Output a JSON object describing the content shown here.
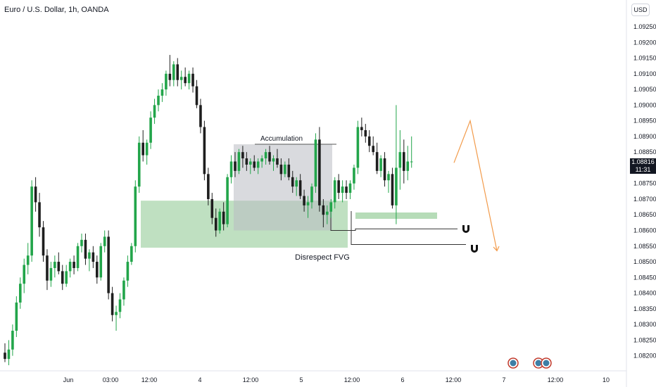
{
  "title": "Euro / U.S. Dollar, 1h, OANDA",
  "currency_button": "USD",
  "last_price": "1.08816",
  "countdown": "11:31",
  "annotations": {
    "accumulation": "Accumulation",
    "disrespect_fvg": "Disrespect FVG"
  },
  "colors": {
    "up": "#22a54a",
    "down": "#1e1e1e",
    "fvg_zone": "#a9d6ac",
    "accumulation_zone": "#b9bcc2",
    "projection": "#f29b4b",
    "price_badge": "#131722"
  },
  "icons": [
    "magnet-icon",
    "magnet-icon",
    "event-flag-icon",
    "event-flag-icon",
    "event-flag-icon"
  ],
  "chart_data": {
    "type": "candlestick",
    "title": "Euro / U.S. Dollar, 1h, OANDA",
    "x_ticks": [
      "Jun",
      "03:00",
      "12:00",
      "4",
      "12:00",
      "5",
      "12:00",
      "6",
      "12:00",
      "7",
      "12:00",
      "10"
    ],
    "y_ticks": [
      "1.09250",
      "1.09200",
      "1.09150",
      "1.09100",
      "1.09050",
      "1.09000",
      "1.08950",
      "1.08900",
      "1.08850",
      "1.08800",
      "1.08750",
      "1.08700",
      "1.08650",
      "1.08600",
      "1.08550",
      "1.08500",
      "1.08450",
      "1.08400",
      "1.08350",
      "1.08300",
      "1.08250",
      "1.08200"
    ],
    "ylim": [
      1.0817,
      1.0927
    ],
    "candles": [
      [
        1.0821,
        1.0824,
        1.0818,
        1.0819
      ],
      [
        1.0819,
        1.0825,
        1.0817,
        1.0822
      ],
      [
        1.0822,
        1.083,
        1.082,
        1.0828
      ],
      [
        1.0828,
        1.0839,
        1.0826,
        1.0837
      ],
      [
        1.0837,
        1.0845,
        1.0835,
        1.0843
      ],
      [
        1.0843,
        1.0851,
        1.084,
        1.0849
      ],
      [
        1.0849,
        1.0856,
        1.0846,
        1.0852
      ],
      [
        1.0852,
        1.0876,
        1.085,
        1.0874
      ],
      [
        1.0874,
        1.0877,
        1.0866,
        1.0869
      ],
      [
        1.0869,
        1.0872,
        1.0858,
        1.0861
      ],
      [
        1.0861,
        1.0863,
        1.085,
        1.0852
      ],
      [
        1.0852,
        1.0854,
        1.0841,
        1.0844
      ],
      [
        1.0844,
        1.085,
        1.0842,
        1.0848
      ],
      [
        1.0848,
        1.0852,
        1.0845,
        1.085
      ],
      [
        1.085,
        1.0853,
        1.0846,
        1.0847
      ],
      [
        1.0847,
        1.0849,
        1.0841,
        1.0843
      ],
      [
        1.0843,
        1.0849,
        1.0842,
        1.0847
      ],
      [
        1.0847,
        1.0851,
        1.0845,
        1.085
      ],
      [
        1.085,
        1.0852,
        1.0846,
        1.0848
      ],
      [
        1.0848,
        1.0856,
        1.0847,
        1.0855
      ],
      [
        1.0855,
        1.0859,
        1.0853,
        1.0857
      ],
      [
        1.0857,
        1.0859,
        1.0849,
        1.0851
      ],
      [
        1.0851,
        1.0854,
        1.0847,
        1.0853
      ],
      [
        1.0853,
        1.0855,
        1.0848,
        1.085
      ],
      [
        1.085,
        1.0852,
        1.0843,
        1.0845
      ],
      [
        1.0845,
        1.0856,
        1.0844,
        1.0855
      ],
      [
        1.0855,
        1.086,
        1.0853,
        1.0858
      ],
      [
        1.0858,
        1.086,
        1.0838,
        1.084
      ],
      [
        1.084,
        1.0842,
        1.0831,
        1.0833
      ],
      [
        1.0833,
        1.0836,
        1.0828,
        1.0834
      ],
      [
        1.0834,
        1.084,
        1.0832,
        1.0838
      ],
      [
        1.0838,
        1.0845,
        1.0836,
        1.0844
      ],
      [
        1.0844,
        1.0852,
        1.0842,
        1.085
      ],
      [
        1.085,
        1.0856,
        1.0849,
        1.0855
      ],
      [
        1.0855,
        1.0876,
        1.0853,
        1.0874
      ],
      [
        1.0874,
        1.089,
        1.0872,
        1.0888
      ],
      [
        1.0888,
        1.0892,
        1.0882,
        1.0884
      ],
      [
        1.0884,
        1.0889,
        1.0881,
        1.0888
      ],
      [
        1.0888,
        1.0898,
        1.0886,
        1.0896
      ],
      [
        1.0896,
        1.0902,
        1.0894,
        1.09
      ],
      [
        1.09,
        1.0905,
        1.0898,
        1.0903
      ],
      [
        1.0903,
        1.0907,
        1.0901,
        1.0905
      ],
      [
        1.0905,
        1.0911,
        1.0903,
        1.091
      ],
      [
        1.091,
        1.0916,
        1.0906,
        1.0908
      ],
      [
        1.0908,
        1.0914,
        1.0906,
        1.0913
      ],
      [
        1.0913,
        1.0915,
        1.0906,
        1.0908
      ],
      [
        1.0908,
        1.0911,
        1.0905,
        1.0909
      ],
      [
        1.0909,
        1.0912,
        1.0906,
        1.0907
      ],
      [
        1.0907,
        1.0911,
        1.0905,
        1.091
      ],
      [
        1.091,
        1.0912,
        1.0904,
        1.0906
      ],
      [
        1.0906,
        1.0908,
        1.0899,
        1.09
      ],
      [
        1.09,
        1.0902,
        1.0891,
        1.0893
      ],
      [
        1.0893,
        1.0895,
        1.0876,
        1.0878
      ],
      [
        1.0878,
        1.088,
        1.0868,
        1.087
      ],
      [
        1.087,
        1.0872,
        1.0862,
        1.0864
      ],
      [
        1.0864,
        1.0867,
        1.0858,
        1.086
      ],
      [
        1.086,
        1.0867,
        1.0859,
        1.0866
      ],
      [
        1.0866,
        1.0869,
        1.086,
        1.0862
      ],
      [
        1.0862,
        1.0878,
        1.0861,
        1.0877
      ],
      [
        1.0877,
        1.0884,
        1.0875,
        1.0882
      ],
      [
        1.0882,
        1.0885,
        1.0877,
        1.0879
      ],
      [
        1.0879,
        1.0886,
        1.0878,
        1.0885
      ],
      [
        1.0885,
        1.0887,
        1.088,
        1.0883
      ],
      [
        1.0883,
        1.0885,
        1.0879,
        1.0881
      ],
      [
        1.0881,
        1.0883,
        1.0878,
        1.0882
      ],
      [
        1.0882,
        1.0884,
        1.0879,
        1.088
      ],
      [
        1.088,
        1.0883,
        1.0878,
        1.0882
      ],
      [
        1.0882,
        1.0884,
        1.088,
        1.0883
      ],
      [
        1.0883,
        1.0886,
        1.0881,
        1.0885
      ],
      [
        1.0885,
        1.0887,
        1.0881,
        1.0882
      ],
      [
        1.0882,
        1.0884,
        1.0879,
        1.0883
      ],
      [
        1.0883,
        1.0886,
        1.088,
        1.0881
      ],
      [
        1.0881,
        1.0883,
        1.0876,
        1.0878
      ],
      [
        1.0878,
        1.0882,
        1.0877,
        1.0881
      ],
      [
        1.0881,
        1.0883,
        1.0876,
        1.0877
      ],
      [
        1.0877,
        1.0879,
        1.0872,
        1.0874
      ],
      [
        1.0874,
        1.0877,
        1.0871,
        1.0876
      ],
      [
        1.0876,
        1.0878,
        1.087,
        1.0871
      ],
      [
        1.0871,
        1.0873,
        1.0866,
        1.0868
      ],
      [
        1.0868,
        1.0871,
        1.0864,
        1.0869
      ],
      [
        1.0869,
        1.0875,
        1.0867,
        1.0874
      ],
      [
        1.0874,
        1.0891,
        1.0872,
        1.0889
      ],
      [
        1.0889,
        1.0893,
        1.0866,
        1.0868
      ],
      [
        1.0868,
        1.087,
        1.0861,
        1.0865
      ],
      [
        1.0865,
        1.0868,
        1.0862,
        1.0866
      ],
      [
        1.0866,
        1.087,
        1.0864,
        1.0869
      ],
      [
        1.0869,
        1.0877,
        1.0867,
        1.0876
      ],
      [
        1.0876,
        1.0878,
        1.087,
        1.0872
      ],
      [
        1.0872,
        1.0876,
        1.0869,
        1.0874
      ],
      [
        1.0874,
        1.0876,
        1.087,
        1.0872
      ],
      [
        1.0872,
        1.0876,
        1.087,
        1.0875
      ],
      [
        1.0875,
        1.0881,
        1.0873,
        1.088
      ],
      [
        1.088,
        1.0895,
        1.0878,
        1.0893
      ],
      [
        1.0893,
        1.0896,
        1.089,
        1.0892
      ],
      [
        1.0892,
        1.0894,
        1.0888,
        1.089
      ],
      [
        1.089,
        1.0892,
        1.0885,
        1.0887
      ],
      [
        1.0887,
        1.089,
        1.0884,
        1.0885
      ],
      [
        1.0885,
        1.0888,
        1.0878,
        1.0879
      ],
      [
        1.0879,
        1.0884,
        1.0877,
        1.0883
      ],
      [
        1.0883,
        1.0885,
        1.0874,
        1.0876
      ],
      [
        1.0876,
        1.0879,
        1.0872,
        1.0878
      ],
      [
        1.0878,
        1.088,
        1.0867,
        1.0868
      ],
      [
        1.0868,
        1.09,
        1.0862,
        1.088
      ],
      [
        1.088,
        1.0892,
        1.0873,
        1.0885
      ],
      [
        1.0885,
        1.0889,
        1.0875,
        1.0879
      ],
      [
        1.0879,
        1.0887,
        1.0876,
        1.0882
      ],
      [
        1.0882,
        1.089,
        1.088,
        1.0882
      ]
    ],
    "zones": [
      {
        "label": "FVG",
        "from": 1.08545,
        "to": 1.08695
      },
      {
        "label": "Accumulation",
        "from": 1.086,
        "to": 1.08875
      }
    ],
    "levels": [
      1.08605,
      1.08555
    ],
    "projection": [
      1.08816,
      1.0895,
      1.08535
    ]
  }
}
